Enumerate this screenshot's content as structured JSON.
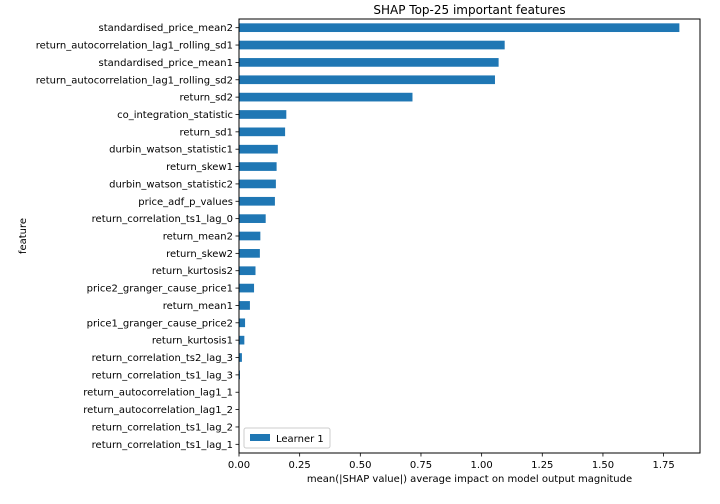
{
  "chart_data": {
    "type": "bar",
    "orientation": "horizontal",
    "title": "SHAP Top-25 important features",
    "xlabel": "mean(|SHAP value|) average impact on model output magnitude",
    "ylabel": "feature",
    "xlim": [
      0,
      1.9
    ],
    "x_ticks": [
      0.0,
      0.25,
      0.5,
      0.75,
      1.0,
      1.25,
      1.5,
      1.75
    ],
    "x_tick_labels": [
      "0.00",
      "0.25",
      "0.50",
      "0.75",
      "1.00",
      "1.25",
      "1.50",
      "1.75"
    ],
    "categories": [
      "standardised_price_mean2",
      "return_autocorrelation_lag1_rolling_sd1",
      "standardised_price_mean1",
      "return_autocorrelation_lag1_rolling_sd2",
      "return_sd2",
      "co_integration_statistic",
      "return_sd1",
      "durbin_watson_statistic1",
      "return_skew1",
      "durbin_watson_statistic2",
      "price_adf_p_values",
      "return_correlation_ts1_lag_0",
      "return_mean2",
      "return_skew2",
      "return_kurtosis2",
      "price2_granger_cause_price1",
      "return_mean1",
      "price1_granger_cause_price2",
      "return_kurtosis1",
      "return_correlation_ts2_lag_3",
      "return_correlation_ts1_lag_3",
      "return_autocorrelation_lag1_1",
      "return_autocorrelation_lag1_2",
      "return_correlation_ts1_lag_2",
      "return_correlation_ts1_lag_1"
    ],
    "series": [
      {
        "name": "Learner 1",
        "color": "#1f77b4",
        "values": [
          1.815,
          1.095,
          1.07,
          1.055,
          0.715,
          0.195,
          0.19,
          0.16,
          0.155,
          0.152,
          0.148,
          0.11,
          0.088,
          0.086,
          0.068,
          0.062,
          0.045,
          0.025,
          0.022,
          0.012,
          0.004,
          0.002,
          0.002,
          0.001,
          0.001
        ]
      }
    ],
    "grid": false,
    "legend_position": "lower-left"
  }
}
